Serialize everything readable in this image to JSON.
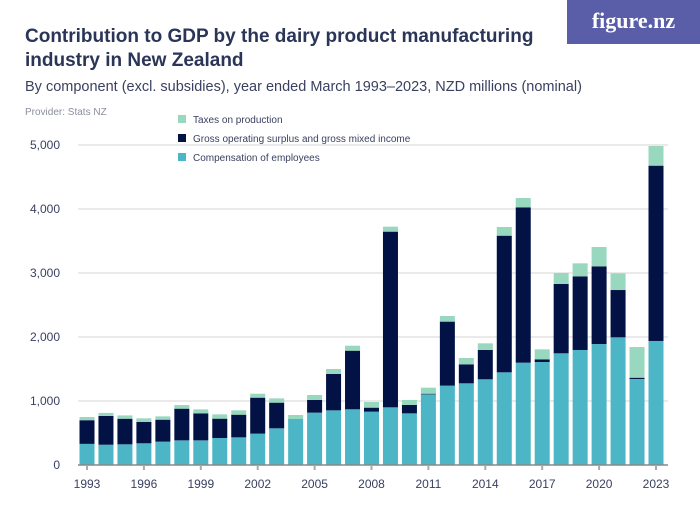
{
  "title": "Contribution to GDP by the dairy product manufacturing industry in New Zealand",
  "subtitle": "By component (excl. subsidies), year ended March 1993–2023, NZD millions (nominal)",
  "provider": "Provider: Stats NZ",
  "logo": "figure.nz",
  "chart_data": {
    "type": "bar",
    "stacked": true,
    "title": "Contribution to GDP by the dairy product manufacturing industry in New Zealand",
    "xlabel": "",
    "ylabel": "",
    "ylim": [
      0,
      5000
    ],
    "yticks": [
      0,
      1000,
      2000,
      3000,
      4000,
      5000
    ],
    "ytick_labels": [
      "0",
      "1,000",
      "2,000",
      "3,000",
      "4,000",
      "5,000"
    ],
    "xtick_labels": [
      "1993",
      "1996",
      "1999",
      "2002",
      "2005",
      "2008",
      "2011",
      "2014",
      "2017",
      "2020",
      "2023"
    ],
    "grid": true,
    "legend_placement": "top-left",
    "categories": [
      "1993",
      "1994",
      "1995",
      "1996",
      "1997",
      "1998",
      "1999",
      "2000",
      "2001",
      "2002",
      "2003",
      "2004",
      "2005",
      "2006",
      "2007",
      "2008",
      "2009",
      "2010",
      "2011",
      "2012",
      "2013",
      "2014",
      "2015",
      "2016",
      "2017",
      "2018",
      "2019",
      "2020",
      "2021",
      "2022",
      "2023"
    ],
    "series": [
      {
        "name": "Compensation of employees",
        "color": "#4db6c6",
        "values": [
          330,
          317,
          323,
          339,
          365,
          385,
          385,
          422,
          432,
          490,
          573,
          719,
          818,
          854,
          870,
          833,
          901,
          807,
          1104,
          1240,
          1276,
          1339,
          1448,
          1599,
          1609,
          1745,
          1797,
          1890,
          1995,
          1344,
          1938
        ]
      },
      {
        "name": "Gross operating surplus and gross mixed income",
        "color": "#021245",
        "values": [
          370,
          450,
          400,
          333,
          343,
          495,
          422,
          302,
          354,
          562,
          401,
          0,
          198,
          568,
          916,
          63,
          2745,
          131,
          10,
          1000,
          297,
          458,
          2135,
          2427,
          42,
          1083,
          1151,
          1214,
          739,
          20,
          2739
        ]
      },
      {
        "name": "Taxes on production",
        "color": "#98d8bf",
        "values": [
          50,
          47,
          52,
          57,
          52,
          57,
          62,
          67,
          68,
          62,
          67,
          62,
          78,
          78,
          78,
          88,
          78,
          78,
          94,
          88,
          99,
          104,
          136,
          146,
          156,
          172,
          203,
          302,
          261,
          479,
          307
        ]
      }
    ]
  }
}
